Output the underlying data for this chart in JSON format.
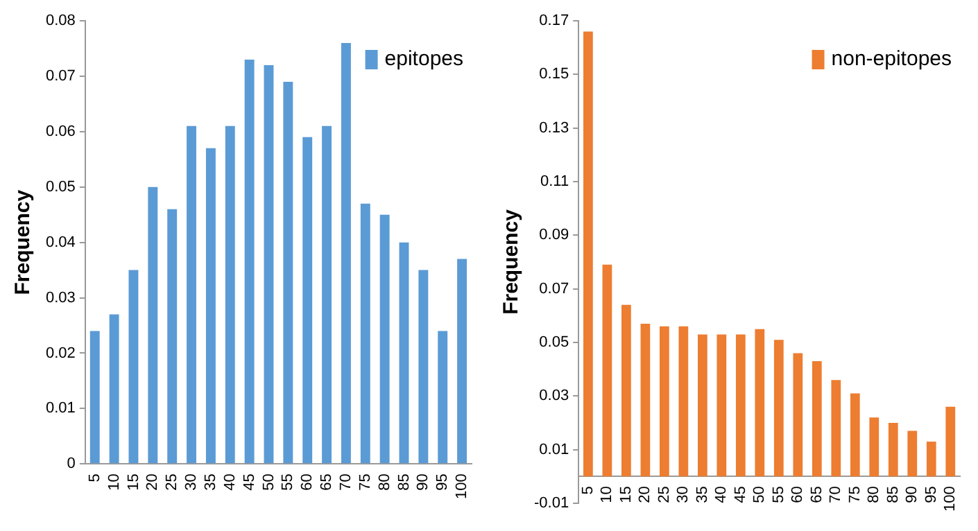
{
  "chart_data": [
    {
      "type": "bar",
      "ylabel": "Frequency",
      "categories": [
        "5",
        "10",
        "15",
        "20",
        "25",
        "30",
        "35",
        "40",
        "45",
        "50",
        "55",
        "60",
        "65",
        "70",
        "75",
        "80",
        "85",
        "90",
        "95",
        "100"
      ],
      "series": [
        {
          "name": "epitopes",
          "color": "#5b9bd5",
          "values": [
            0.024,
            0.027,
            0.035,
            0.05,
            0.046,
            0.061,
            0.057,
            0.061,
            0.073,
            0.072,
            0.069,
            0.059,
            0.061,
            0.076,
            0.047,
            0.045,
            0.04,
            0.035,
            0.024,
            0.037
          ]
        }
      ],
      "ylim": [
        0,
        0.08
      ],
      "yticks": [
        {
          "value": 0,
          "label": "0"
        },
        0.01,
        0.02,
        0.03,
        0.04,
        0.05,
        0.06,
        0.07,
        0.08
      ],
      "grid": false,
      "legend": "top right"
    },
    {
      "type": "bar",
      "ylabel": "Frequency",
      "categories": [
        "5",
        "10",
        "15",
        "20",
        "25",
        "30",
        "35",
        "40",
        "45",
        "50",
        "55",
        "60",
        "65",
        "70",
        "75",
        "80",
        "85",
        "90",
        "95",
        "100"
      ],
      "series": [
        {
          "name": "non-epitopes",
          "color": "#ed7d31",
          "values": [
            0.166,
            0.079,
            0.064,
            0.057,
            0.056,
            0.056,
            0.053,
            0.053,
            0.053,
            0.055,
            0.051,
            0.046,
            0.043,
            0.036,
            0.031,
            0.022,
            0.02,
            0.017,
            0.013,
            0.026
          ]
        }
      ],
      "ylim": [
        -0.01,
        0.17
      ],
      "yticks": [
        -0.01,
        0.01,
        0.03,
        0.05,
        0.07,
        0.09,
        0.11,
        0.13,
        0.15,
        0.17
      ],
      "grid": false,
      "legend": "top right"
    }
  ]
}
